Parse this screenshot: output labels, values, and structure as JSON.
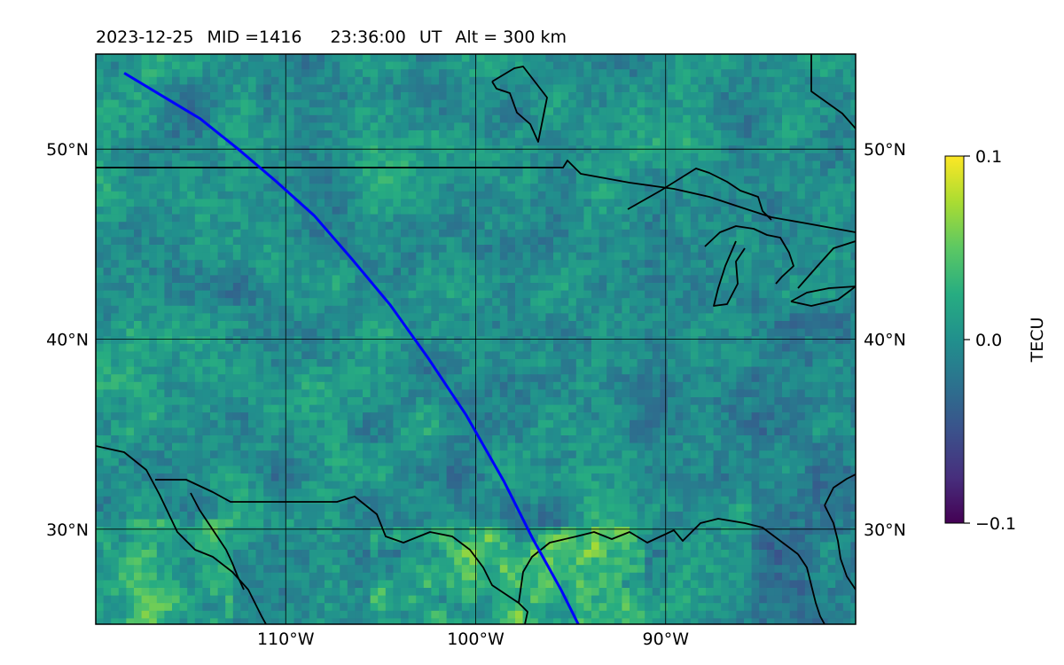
{
  "title": {
    "date": "2023-12-25",
    "mid": "MID =1416",
    "time": "23:36:00",
    "ut": "UT",
    "alt": "Alt = 300 km"
  },
  "map": {
    "projection": "equirectangular",
    "lon_range": [
      -120,
      -80
    ],
    "lat_range": [
      25,
      55
    ],
    "lat_ticks": [
      {
        "value": 50,
        "label": "50°N"
      },
      {
        "value": 40,
        "label": "40°N"
      },
      {
        "value": 30,
        "label": "30°N"
      }
    ],
    "lon_ticks": [
      {
        "value": -110,
        "label": "110°W"
      },
      {
        "value": -100,
        "label": "100°W"
      },
      {
        "value": -90,
        "label": "90°W"
      }
    ],
    "grid": true,
    "track_color": "#0000ff",
    "coast_color": "#000000",
    "track": [
      [
        -118.5,
        54
      ],
      [
        -116.5,
        52.8
      ],
      [
        -114.5,
        51.6
      ],
      [
        -112.5,
        50
      ],
      [
        -110.5,
        48.3
      ],
      [
        -108.5,
        46.5
      ],
      [
        -106.5,
        44.2
      ],
      [
        -104.5,
        41.8
      ],
      [
        -102.5,
        39
      ],
      [
        -100.5,
        36
      ],
      [
        -98.5,
        32.5
      ],
      [
        -97,
        29.5
      ],
      [
        -95.5,
        26.8
      ],
      [
        -94.6,
        25
      ]
    ]
  },
  "colorbar": {
    "label": "TECU",
    "colormap": "viridis",
    "min": -0.1,
    "max": 0.1,
    "ticks": [
      {
        "value": 0.1,
        "label": "0.1"
      },
      {
        "value": 0.0,
        "label": "0.0"
      },
      {
        "value": -0.1,
        "label": "−0.1"
      }
    ]
  }
}
